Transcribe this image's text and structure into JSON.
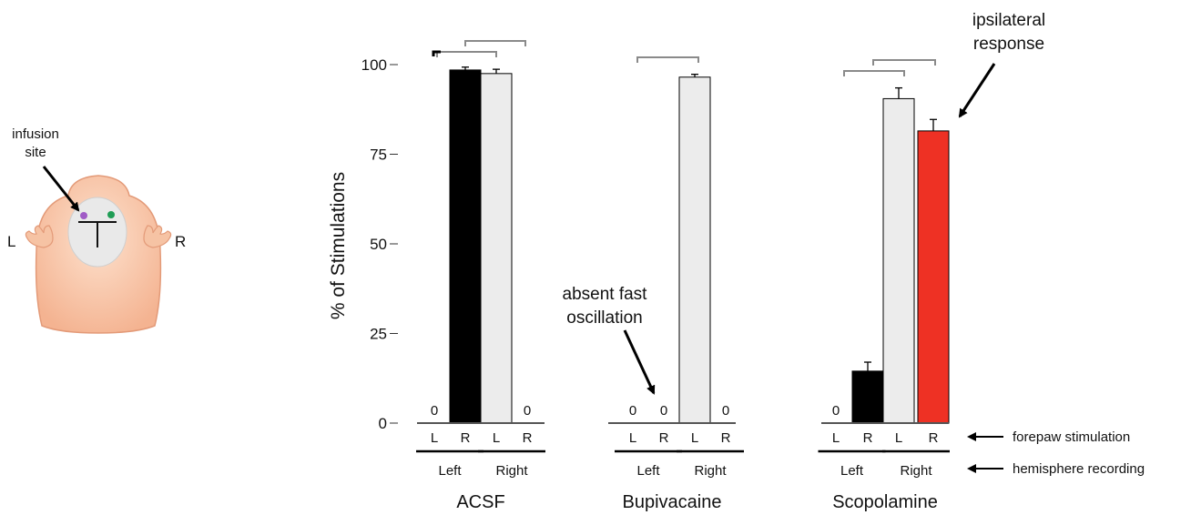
{
  "figure": {
    "ylabel": "% of Stimulations",
    "yticks": [
      "0",
      "25",
      "50",
      "75",
      "100"
    ],
    "illustration": {
      "infusion_label_line1": "infusion",
      "infusion_label_line2": "site",
      "left_label": "L",
      "right_label": "R"
    },
    "annotations": {
      "absent_line1": "absent fast",
      "absent_line2": "oscillation",
      "ipsi_line1": "ipsilateral",
      "ipsi_line2": "response",
      "forepaw": "forepaw stimulation",
      "hemisphere": "hemisphere recording"
    }
  },
  "chart_data": [
    {
      "type": "bar",
      "title": "ACSF",
      "categories": [
        "L",
        "R",
        "L",
        "R"
      ],
      "groups": [
        "Left",
        "Left",
        "Right",
        "Right"
      ],
      "values": [
        0,
        98.5,
        97.5,
        0
      ],
      "errors": [
        0,
        0.8,
        1.2,
        0
      ],
      "zero_labels": [
        "0",
        "",
        "",
        "0"
      ],
      "bar_colors": [
        "#000000",
        "#000000",
        "#ececec",
        "#ececec"
      ],
      "ylim": [
        0,
        100
      ]
    },
    {
      "type": "bar",
      "title": "Bupivacaine",
      "categories": [
        "L",
        "R",
        "L",
        "R"
      ],
      "groups": [
        "Left",
        "Left",
        "Right",
        "Right"
      ],
      "values": [
        0,
        0,
        96.5,
        0
      ],
      "errors": [
        0,
        0,
        0.8,
        0
      ],
      "zero_labels": [
        "0",
        "0",
        "",
        "0"
      ],
      "bar_colors": [
        "#000000",
        "#000000",
        "#ececec",
        "#ececec"
      ],
      "ylim": [
        0,
        100
      ]
    },
    {
      "type": "bar",
      "title": "Scopolamine",
      "categories": [
        "L",
        "R",
        "L",
        "R"
      ],
      "groups": [
        "Left",
        "Left",
        "Right",
        "Right"
      ],
      "values": [
        0,
        14.5,
        90.5,
        81.5
      ],
      "errors": [
        0,
        2.5,
        3.0,
        3.2
      ],
      "zero_labels": [
        "0",
        "",
        "",
        ""
      ],
      "bar_colors": [
        "#000000",
        "#000000",
        "#ececec",
        "#ee3124"
      ],
      "ylim": [
        0,
        100
      ]
    }
  ]
}
